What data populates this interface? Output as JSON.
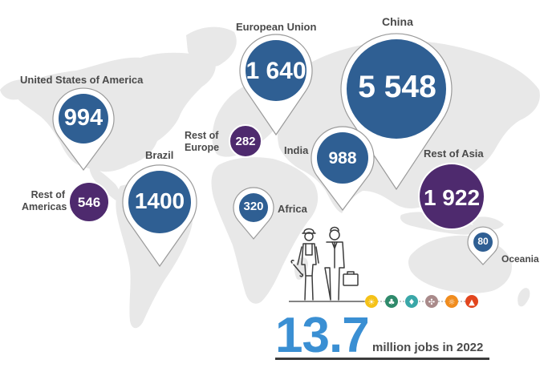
{
  "regions": [
    {
      "name": "United States of America",
      "value": "994",
      "color": "#2f5f93"
    },
    {
      "name": "European Union",
      "value": "1 640",
      "color": "#2f5f93"
    },
    {
      "name": "China",
      "value": "5 548",
      "color": "#2f5f93"
    },
    {
      "name": "Rest of\nEurope",
      "value": "282",
      "color": "#4e2a6e"
    },
    {
      "name": "India",
      "value": "988",
      "color": "#2f5f93"
    },
    {
      "name": "Rest of Asia",
      "value": "1 922",
      "color": "#4e2a6e"
    },
    {
      "name": "Brazil",
      "value": "1400",
      "color": "#2f5f93"
    },
    {
      "name": "Rest of\nAmericas",
      "value": "546",
      "color": "#4e2a6e"
    },
    {
      "name": "Africa",
      "value": "320",
      "color": "#2f5f93"
    },
    {
      "name": "Oceania",
      "value": "80",
      "color": "#2f5f93"
    }
  ],
  "headline": {
    "number": "13.7",
    "caption": "million jobs in 2022",
    "color": "#3a8fd3"
  },
  "energy_icons": [
    {
      "name": "solar-pv-icon",
      "color": "#f5c218"
    },
    {
      "name": "bioenergy-icon",
      "color": "#2f8a6b"
    },
    {
      "name": "hydropower-icon",
      "color": "#3aa7a8"
    },
    {
      "name": "wind-icon",
      "color": "#a98a8a"
    },
    {
      "name": "solar-thermal-icon",
      "color": "#f08c1e"
    },
    {
      "name": "geothermal-icon",
      "color": "#e2451d"
    }
  ],
  "map_color": "#e8e8e8"
}
